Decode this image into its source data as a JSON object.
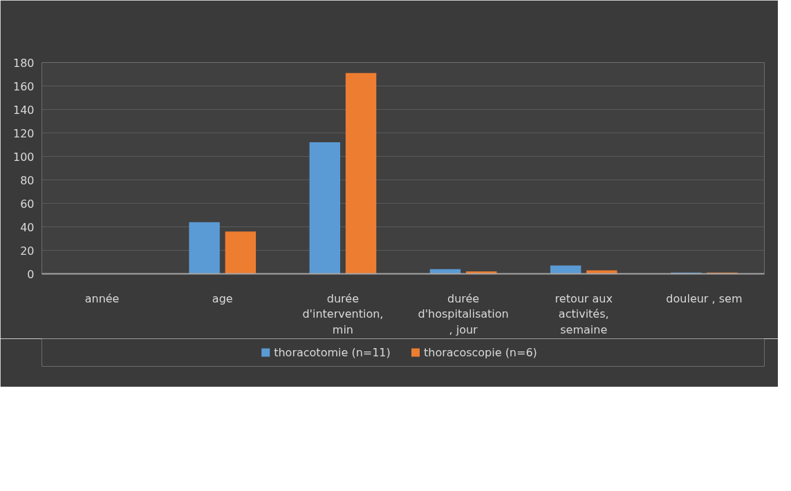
{
  "chart_data": {
    "type": "bar",
    "categories": [
      "année",
      "age",
      "durée d'intervention, min",
      "durée d'hospitalisation , jour",
      "retour aux activités, semaine",
      "douleur , sem"
    ],
    "series": [
      {
        "name": "thoracotomie (n=11)",
        "color": "#5b9bd5",
        "values": [
          0,
          44,
          112,
          4,
          7,
          1
        ]
      },
      {
        "name": "thoracoscopie (n=6)",
        "color": "#ed7d31",
        "values": [
          0,
          36,
          171,
          2,
          3,
          1
        ]
      }
    ],
    "ylim": [
      0,
      180
    ],
    "yticks": [
      0,
      20,
      40,
      60,
      80,
      100,
      120,
      140,
      160,
      180
    ],
    "grid": "y",
    "legend": "bottom"
  }
}
